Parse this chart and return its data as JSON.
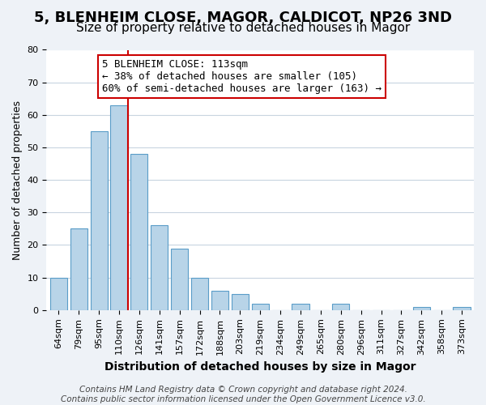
{
  "title": "5, BLENHEIM CLOSE, MAGOR, CALDICOT, NP26 3ND",
  "subtitle": "Size of property relative to detached houses in Magor",
  "xlabel": "Distribution of detached houses by size in Magor",
  "ylabel": "Number of detached properties",
  "categories": [
    "64sqm",
    "79sqm",
    "95sqm",
    "110sqm",
    "126sqm",
    "141sqm",
    "157sqm",
    "172sqm",
    "188sqm",
    "203sqm",
    "219sqm",
    "234sqm",
    "249sqm",
    "265sqm",
    "280sqm",
    "296sqm",
    "311sqm",
    "327sqm",
    "342sqm",
    "358sqm",
    "373sqm"
  ],
  "values": [
    10,
    25,
    55,
    63,
    48,
    26,
    19,
    10,
    6,
    5,
    2,
    0,
    2,
    0,
    2,
    0,
    0,
    0,
    1,
    0,
    1
  ],
  "bar_color": "#b8d4e8",
  "bar_edge_color": "#5a9dc8",
  "vline_index": 3,
  "bar_width": 0.85,
  "vline_color": "#cc0000",
  "ylim": [
    0,
    80
  ],
  "yticks": [
    0,
    10,
    20,
    30,
    40,
    50,
    60,
    70,
    80
  ],
  "annotation_text": "5 BLENHEIM CLOSE: 113sqm\n← 38% of detached houses are smaller (105)\n60% of semi-detached houses are larger (163) →",
  "annotation_box_color": "#ffffff",
  "annotation_box_edge_color": "#cc0000",
  "footer_text": "Contains HM Land Registry data © Crown copyright and database right 2024.\nContains public sector information licensed under the Open Government Licence v3.0.",
  "background_color": "#eef2f7",
  "plot_background_color": "#ffffff",
  "grid_color": "#c8d4e0",
  "title_fontsize": 13,
  "subtitle_fontsize": 11,
  "xlabel_fontsize": 10,
  "ylabel_fontsize": 9,
  "tick_fontsize": 8,
  "footer_fontsize": 7.5,
  "annotation_fontsize": 9
}
